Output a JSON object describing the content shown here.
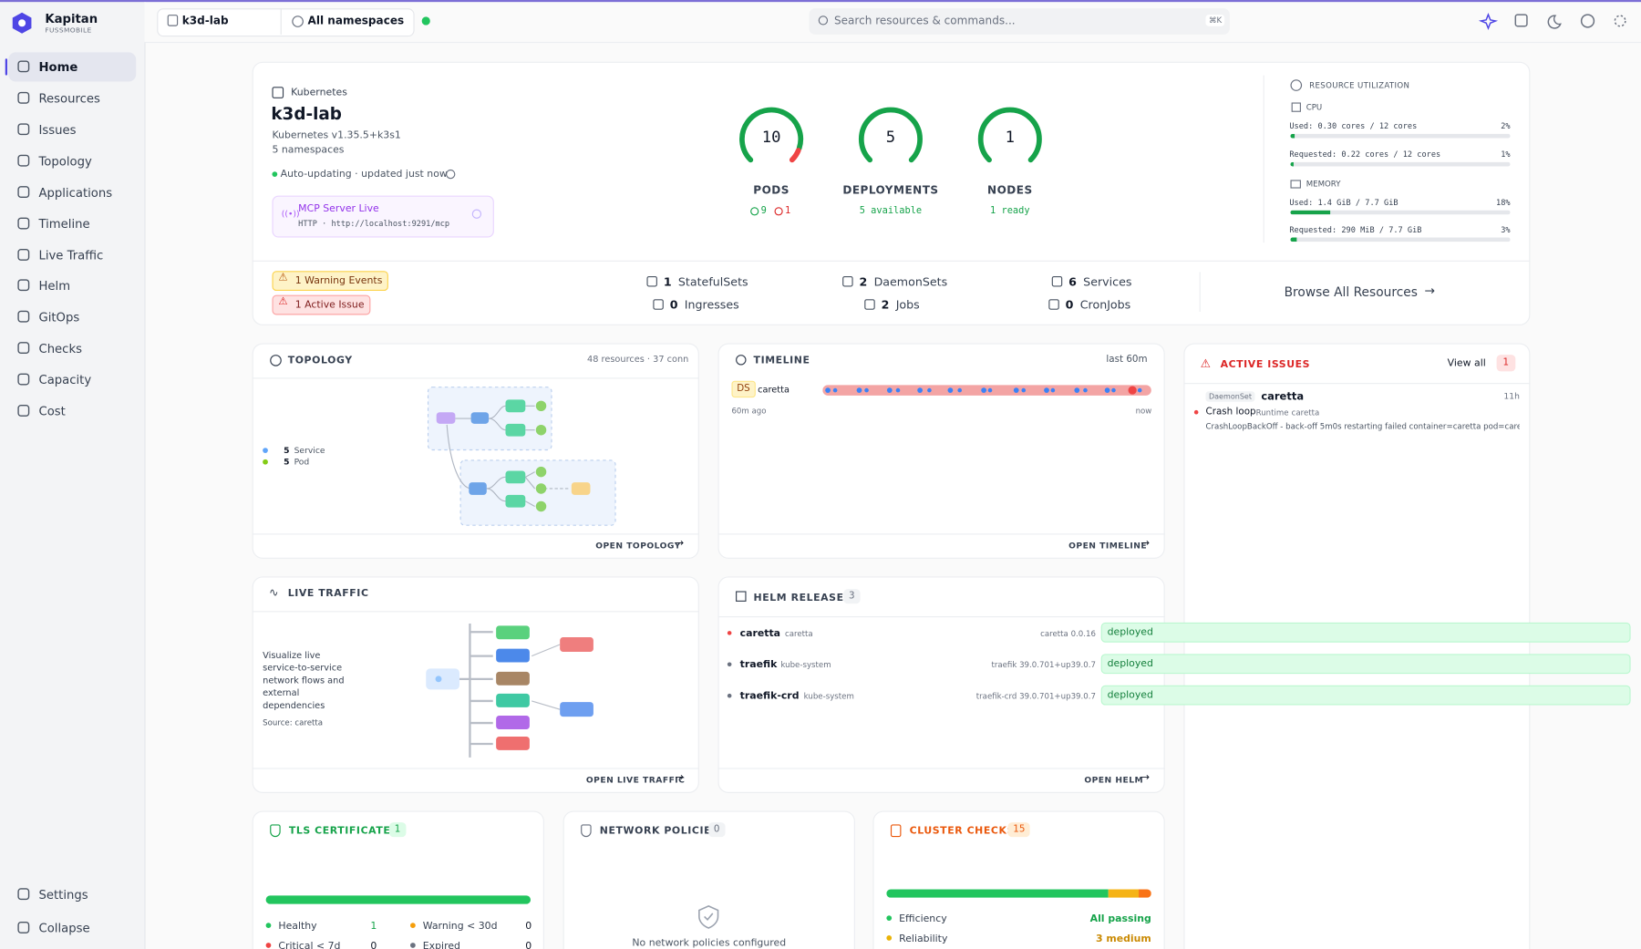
{
  "brand": {
    "name": "Kapitan",
    "org": "FUSSMOBILE"
  },
  "nav": [
    "Home",
    "Resources",
    "Issues",
    "Topology",
    "Applications",
    "Timeline",
    "Live Traffic",
    "Helm",
    "GitOps",
    "Checks",
    "Capacity",
    "Cost"
  ],
  "nav_bottom": [
    "Settings",
    "Collapse"
  ],
  "topbar": {
    "cluster": "k3d-lab",
    "namespace": "All namespaces",
    "search": "Search resources & commands...",
    "shortcut": "⌘K"
  },
  "cluster": {
    "provider": "Kubernetes",
    "name": "k3d-lab",
    "version": "Kubernetes v1.35.5+k3s1",
    "namespaces": "5 namespaces",
    "status": "Auto-updating · updated just now",
    "mcp_title": "MCP Server Live",
    "mcp_url": "HTTP · http://localhost:9291/mcp"
  },
  "stats": [
    {
      "value": 10,
      "label": "PODS",
      "ok": 9,
      "err": 1
    },
    {
      "value": 5,
      "label": "DEPLOYMENTS",
      "sub": "5 available"
    },
    {
      "value": 1,
      "label": "NODES",
      "sub": "1 ready"
    }
  ],
  "utilization": {
    "title": "RESOURCE UTILIZATION",
    "cpu_title": "CPU",
    "memory_title": "MEMORY",
    "rows": [
      {
        "text": "Used: 0.30 cores / 12 cores",
        "percent": "2%"
      },
      {
        "text": "Requested: 0.22 cores / 12 cores",
        "percent": "1%"
      },
      {
        "text": "Used: 1.4 GiB / 7.7 GiB",
        "percent": "18%"
      },
      {
        "text": "Requested: 290 MiB / 7.7 GiB",
        "percent": "3%"
      }
    ]
  },
  "alerts": [
    "1 Warning Events",
    "1 Active Issue"
  ],
  "counts": [
    {
      "value": 1,
      "label": "StatefulSets"
    },
    {
      "value": 2,
      "label": "DaemonSets"
    },
    {
      "value": 6,
      "label": "Services"
    },
    {
      "value": 0,
      "label": "Ingresses"
    },
    {
      "value": 2,
      "label": "Jobs"
    },
    {
      "value": 0,
      "label": "CronJobs"
    }
  ],
  "browse": "Browse All Resources",
  "topology": {
    "title": "TOPOLOGY",
    "meta": "48 resources · 37 conn",
    "legend": [
      {
        "count": 5,
        "label": "Service"
      },
      {
        "count": 5,
        "label": "Pod"
      }
    ],
    "link": "OPEN TOPOLOGY"
  },
  "timeline": {
    "title": "TIMELINE",
    "range": "last 60m",
    "kind": "DS",
    "name": "caretta",
    "start": "60m ago",
    "end": "now",
    "link": "OPEN TIMELINE"
  },
  "issues": {
    "title": "ACTIVE ISSUES",
    "view_all": "View all",
    "count": 1,
    "items": [
      {
        "kind": "DaemonSet",
        "name": "caretta",
        "age": "11h",
        "reason": "Crash loop",
        "category": "Runtime",
        "namespace": "caretta",
        "message": "CrashLoopBackOff - back-off 5m0s restarting failed container=caretta pod=care..."
      }
    ]
  },
  "traffic": {
    "title": "LIVE TRAFFIC",
    "description": "Visualize live service-to-service network flows and external dependencies",
    "source": "Source: caretta",
    "link": "OPEN LIVE TRAFFIC"
  },
  "helm": {
    "title": "HELM RELEASES",
    "count": 3,
    "releases": [
      {
        "name": "caretta",
        "namespace": "caretta",
        "chart": "caretta 0.0.16",
        "status": "deployed"
      },
      {
        "name": "traefik",
        "namespace": "kube-system",
        "chart": "traefik 39.0.701+up39.0.7",
        "status": "deployed"
      },
      {
        "name": "traefik-crd",
        "namespace": "kube-system",
        "chart": "traefik-crd 39.0.701+up39.0.7",
        "status": "deployed"
      }
    ],
    "link": "OPEN HELM"
  },
  "tls": {
    "title": "TLS CERTIFICATES",
    "count": 1,
    "rows": [
      {
        "label": "Healthy",
        "value": 1
      },
      {
        "label": "Warning < 30d",
        "value": 0
      },
      {
        "label": "Critical < 7d",
        "value": 0
      },
      {
        "label": "Expired",
        "value": 0
      }
    ]
  },
  "netpol": {
    "title": "NETWORK POLICIES",
    "count": 0,
    "empty": "No network policies configured"
  },
  "checks": {
    "title": "CLUSTER CHECKS",
    "count": 15,
    "rows": [
      {
        "label": "Efficiency",
        "status": "All passing"
      },
      {
        "label": "Reliability",
        "status": "3 medium"
      }
    ]
  }
}
